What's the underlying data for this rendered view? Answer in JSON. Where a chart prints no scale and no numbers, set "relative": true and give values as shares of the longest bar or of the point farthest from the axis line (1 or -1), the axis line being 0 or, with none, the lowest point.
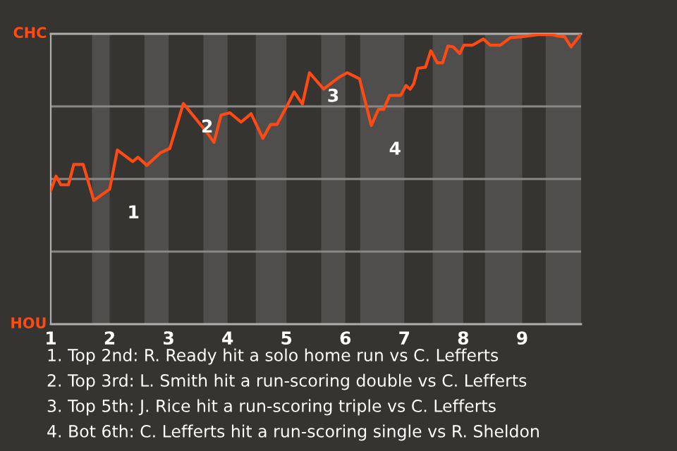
{
  "chart_data": {
    "type": "line",
    "relative": true,
    "x": [
      1.0,
      1.09,
      1.17,
      1.3,
      1.39,
      1.55,
      1.73,
      2.0,
      2.13,
      2.39,
      2.48,
      2.63,
      2.86,
      3.02,
      3.25,
      3.64,
      3.77,
      3.89,
      4.04,
      4.23,
      4.4,
      4.6,
      4.73,
      4.84,
      5.0,
      5.13,
      5.27,
      5.39,
      5.63,
      5.89,
      6.03,
      6.24,
      6.44,
      6.56,
      6.65,
      6.75,
      6.94,
      7.03,
      7.1,
      7.16,
      7.23,
      7.36,
      7.45,
      7.56,
      7.65,
      7.74,
      7.83,
      7.94,
      8.01,
      8.16,
      8.34,
      8.46,
      8.63,
      8.8,
      9.0,
      9.26,
      9.51,
      9.61,
      9.72,
      9.83,
      10.0
    ],
    "values": [
      0.46,
      0.51,
      0.48,
      0.48,
      0.55,
      0.55,
      0.426,
      0.465,
      0.6,
      0.56,
      0.575,
      0.547,
      0.59,
      0.605,
      0.76,
      0.663,
      0.626,
      0.72,
      0.728,
      0.696,
      0.725,
      0.64,
      0.688,
      0.688,
      0.748,
      0.8,
      0.758,
      0.866,
      0.81,
      0.85,
      0.866,
      0.845,
      0.684,
      0.74,
      0.74,
      0.788,
      0.788,
      0.822,
      0.809,
      0.828,
      0.881,
      0.885,
      0.942,
      0.9,
      0.9,
      0.958,
      0.955,
      0.932,
      0.961,
      0.961,
      0.982,
      0.961,
      0.961,
      0.987,
      0.99,
      0.997,
      0.997,
      0.992,
      0.99,
      0.955,
      1
    ],
    "color": "#ff4a14",
    "xlim": [
      1,
      10
    ],
    "xticks": [
      1,
      2,
      3,
      4,
      5,
      6,
      7,
      8,
      9
    ],
    "grid": false,
    "bands": [
      {
        "axis": "x",
        "from": 1.7,
        "to": 2,
        "color": "#4f4e4c"
      },
      {
        "axis": "x",
        "from": 2.59,
        "to": 3,
        "color": "#4f4e4c"
      },
      {
        "axis": "x",
        "from": 3.59,
        "to": 4,
        "color": "#4f4e4c"
      },
      {
        "axis": "x",
        "from": 4.48,
        "to": 5,
        "color": "#4f4e4c"
      },
      {
        "axis": "x",
        "from": 5.59,
        "to": 6,
        "color": "#4f4e4c"
      },
      {
        "axis": "x",
        "from": 6.25,
        "to": 7,
        "color": "#4f4e4c"
      },
      {
        "axis": "x",
        "from": 7.48,
        "to": 8,
        "color": "#4f4e4c"
      },
      {
        "axis": "x",
        "from": 8.37,
        "to": 9,
        "color": "#4f4e4c"
      },
      {
        "axis": "x",
        "from": 9.4,
        "to": 10,
        "color": "#4f4e4c"
      }
    ],
    "ref_lines": [
      {
        "axis": "y",
        "value": 1,
        "label": "CHC"
      },
      {
        "axis": "y",
        "value": 0.75,
        "color": "#8a8886"
      },
      {
        "axis": "y",
        "value": 0.5,
        "color": "#8a8886"
      },
      {
        "axis": "y",
        "value": 0.25,
        "color": "#8a8886"
      },
      {
        "axis": "y",
        "value": 0,
        "label": "HOU"
      }
    ],
    "annotations": [
      {
        "text": "1",
        "x": 2.0,
        "y": 0.465
      },
      {
        "text": "2",
        "x": 3.25,
        "y": 0.76
      },
      {
        "text": "3",
        "x": 5.39,
        "y": 0.866
      },
      {
        "text": "4",
        "x": 6.44,
        "y": 0.684
      },
      "1. Top 2nd: R. Ready hit a solo home run vs C. Lefferts",
      "2. Top 3rd: L. Smith hit a run-scoring double vs C. Lefferts",
      "3. Top 5th: J. Rice hit a run-scoring triple vs C. Lefferts",
      "4. Bot 6th: C. Lefferts hit a run-scoring single vs R. Sheldon"
    ]
  }
}
